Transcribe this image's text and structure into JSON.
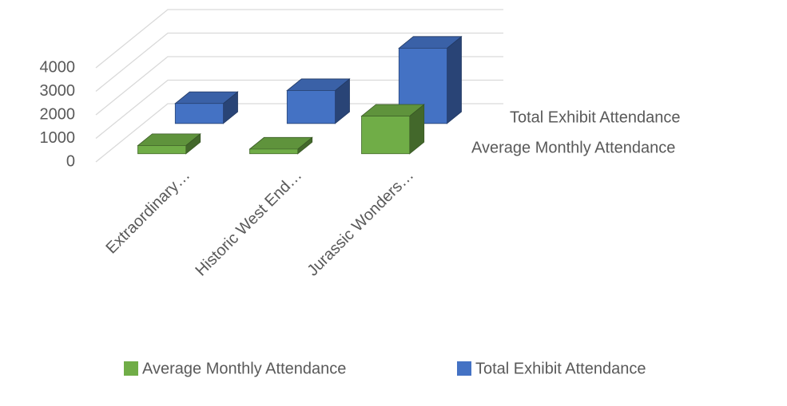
{
  "chart_data": {
    "type": "bar3d",
    "categories": [
      "Extraordinary…",
      "Historic West End…",
      "Jurassic Wonders…"
    ],
    "series": [
      {
        "name": "Average Monthly Attendance",
        "color": "#70ad47",
        "values": [
          350,
          200,
          1600
        ]
      },
      {
        "name": "Total Exhibit Attendance",
        "color": "#4472c4",
        "values": [
          850,
          1400,
          3200
        ]
      }
    ],
    "ylim": [
      0,
      4000
    ],
    "yticks": [
      0,
      1000,
      2000,
      3000,
      4000
    ],
    "grid": true,
    "legend": "bottom"
  }
}
